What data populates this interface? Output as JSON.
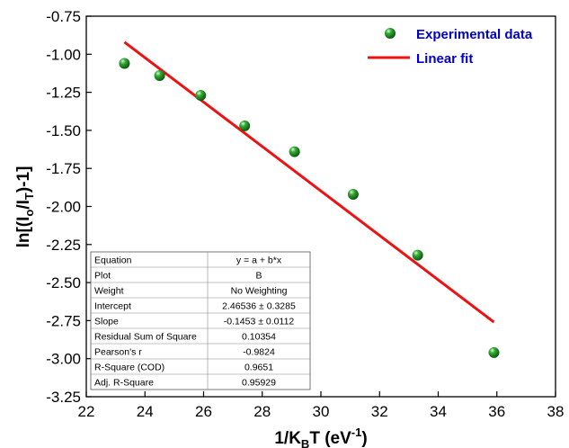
{
  "chart_data": {
    "type": "scatter",
    "xlabel": "1/K_BT (eV^-1)",
    "ylabel": "ln[(I_o/I_T)-1]",
    "xlim": [
      22,
      38
    ],
    "ylim": [
      -3.25,
      -0.75
    ],
    "xticks": [
      "22",
      "24",
      "26",
      "28",
      "30",
      "32",
      "34",
      "36",
      "38"
    ],
    "yticks": [
      "-0.75",
      "-1.00",
      "-1.25",
      "-1.50",
      "-1.75",
      "-2.00",
      "-2.25",
      "-2.50",
      "-2.75",
      "-3.00",
      "-3.25"
    ],
    "series": [
      {
        "name": "Experimental data",
        "kind": "scatter",
        "color": "#1a8a1a",
        "x": [
          23.3,
          24.5,
          25.9,
          27.4,
          29.1,
          31.1,
          33.3,
          35.9
        ],
        "y": [
          -1.06,
          -1.14,
          -1.27,
          -1.47,
          -1.64,
          -1.92,
          -2.32,
          -2.96
        ]
      },
      {
        "name": "Linear fit",
        "kind": "line",
        "color": "#ee1111",
        "x": [
          23.3,
          35.9
        ],
        "y": [
          -0.92,
          -2.76
        ]
      }
    ],
    "legend_position": "top-right",
    "fit_table": [
      [
        "Equation",
        "y = a + b*x"
      ],
      [
        "Plot",
        "B"
      ],
      [
        "Weight",
        "No Weighting"
      ],
      [
        "Intercept",
        "2.46536 ± 0.3285"
      ],
      [
        "Slope",
        "-0.1453 ± 0.0112"
      ],
      [
        "Residual Sum of Square",
        "0.10354"
      ],
      [
        "Pearson's r",
        "-0.9824"
      ],
      [
        "R-Square (COD)",
        "0.9651"
      ],
      [
        "Adj. R-Square",
        "0.95929"
      ]
    ],
    "fit_table_position": "bottom-left"
  }
}
